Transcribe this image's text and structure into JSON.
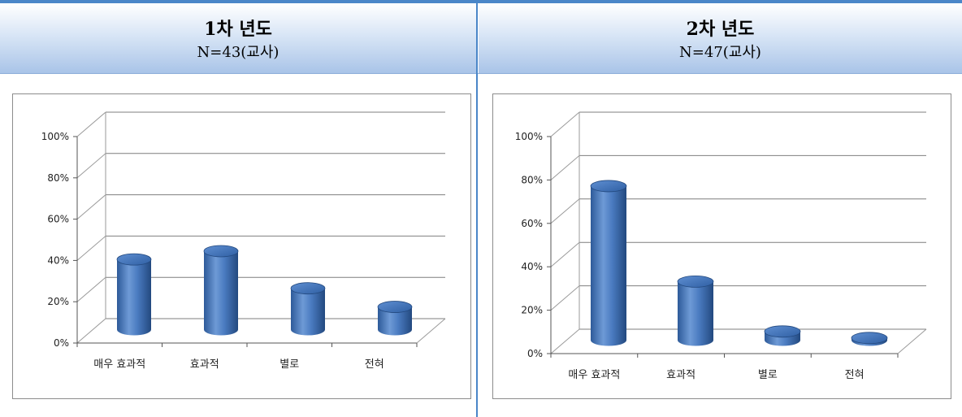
{
  "panels": [
    {
      "title": "1차 년도",
      "subtitle": "N=43(교사)"
    },
    {
      "title": "2차 년도",
      "subtitle": "N=47(교사)"
    }
  ],
  "chart_data": [
    {
      "type": "bar",
      "categories": [
        "매우 효과적",
        "효과적",
        "별로",
        "전혀"
      ],
      "values": [
        34,
        38,
        20,
        11
      ],
      "yticks": [
        "0%",
        "20%",
        "40%",
        "60%",
        "80%",
        "100%"
      ],
      "ylim": [
        0,
        100
      ],
      "grid": true,
      "bar_color": "#4a7bc0"
    },
    {
      "type": "bar",
      "categories": [
        "매우 효과적",
        "효과적",
        "별로",
        "전혀"
      ],
      "values": [
        71,
        27,
        4,
        1
      ],
      "yticks": [
        "0%",
        "20%",
        "40%",
        "60%",
        "80%",
        "100%"
      ],
      "ylim": [
        0,
        100
      ],
      "grid": true,
      "bar_color": "#4a7bc0"
    }
  ]
}
